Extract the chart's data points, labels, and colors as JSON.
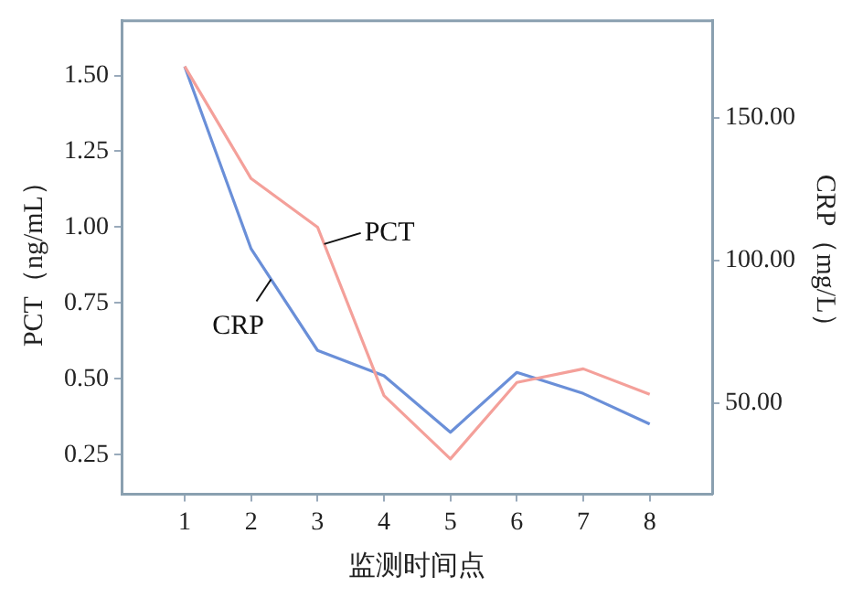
{
  "chart_data": {
    "type": "line",
    "xlabel": "监测时间点",
    "ylabel": "PCT（ng/mL）",
    "y2label": "CRP（mg/L）",
    "x": [
      1,
      2,
      3,
      4,
      5,
      6,
      7,
      8
    ],
    "xlim": [
      0.05,
      8.94
    ],
    "xticks": [
      1,
      2,
      3,
      4,
      5,
      6,
      7,
      8
    ],
    "ylim": [
      0.12,
      1.68
    ],
    "yticks": [
      {
        "value": 0.25,
        "label": "0.25"
      },
      {
        "value": 0.5,
        "label": "0.50"
      },
      {
        "value": 0.75,
        "label": "0.75"
      },
      {
        "value": 1,
        "label": "1.00"
      },
      {
        "value": 1.25,
        "label": "1.25"
      },
      {
        "value": 1.5,
        "label": "1.50"
      }
    ],
    "y2lim": [
      18,
      184
    ],
    "y2ticks": [
      {
        "value": 50,
        "label": "50.00"
      },
      {
        "value": 100,
        "label": "100.00"
      },
      {
        "value": 150,
        "label": "150.00"
      }
    ],
    "series": [
      {
        "name": "PCT",
        "color": "#f4a09a",
        "values": [
          1.53,
          1.16,
          1.0,
          0.445,
          0.236,
          0.488,
          0.533,
          0.449
        ]
      },
      {
        "name": "CRP",
        "color": "#6a8fd8",
        "axis": "y2",
        "values": [
          168,
          104,
          68.4,
          59.5,
          39.7,
          60.7,
          53.3,
          42.6
        ]
      }
    ],
    "grid": false,
    "legend": false,
    "marker": "none",
    "line_style": "solid"
  }
}
